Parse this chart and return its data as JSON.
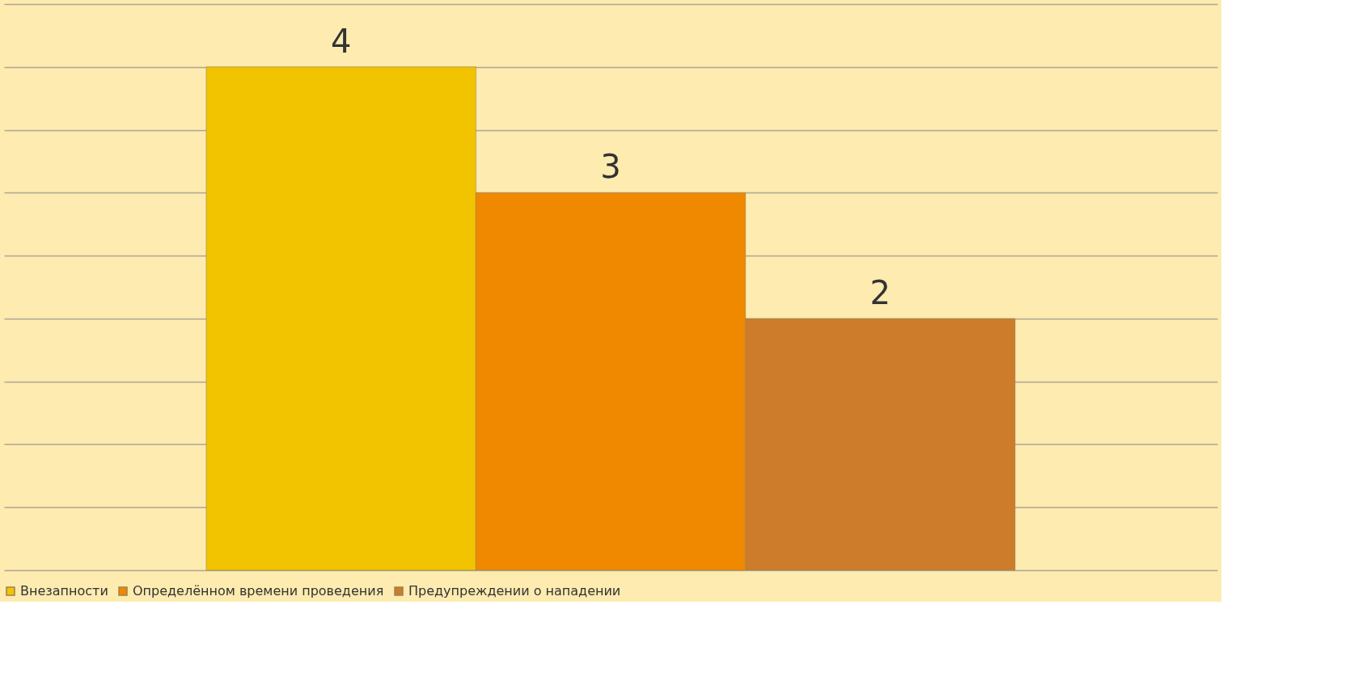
{
  "chart_data": {
    "type": "bar",
    "categories": [
      null
    ],
    "series": [
      {
        "name": "Внезапности",
        "color": "#f2c400",
        "values": [
          4
        ]
      },
      {
        "name": "Определённом времени проведения",
        "color": "#f08800",
        "values": [
          3
        ]
      },
      {
        "name": "Предупреждении о нападении",
        "color": "#cc7c2a",
        "values": [
          2
        ]
      }
    ],
    "ylim": [
      0,
      4.5
    ],
    "yticks": [
      {
        "value": 0,
        "label": null
      },
      {
        "value": 0.5,
        "label": null
      },
      {
        "value": 1,
        "label": null
      },
      {
        "value": 1.5,
        "label": null
      },
      {
        "value": 2,
        "label": null
      },
      {
        "value": 2.5,
        "label": null
      },
      {
        "value": 3,
        "label": null
      },
      {
        "value": 3.5,
        "label": null
      },
      {
        "value": 4,
        "label": null
      },
      {
        "value": 4.5,
        "label": null
      }
    ],
    "grid": "y",
    "legend": "bottom",
    "tick_labels": false,
    "data_labels": true
  }
}
